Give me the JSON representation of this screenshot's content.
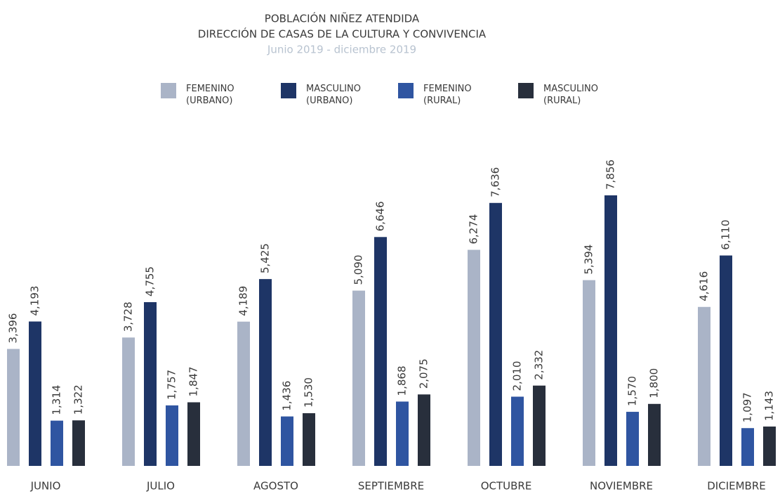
{
  "chart_data": {
    "type": "bar",
    "title": "POBLACIÓN NIÑEZ ATENDIDA",
    "subtitle": "DIRECCIÓN DE CASAS DE LA CULTURA Y CONVIVENCIA",
    "date_range": "Junio 2019 - diciembre 2019",
    "categories": [
      "JUNIO",
      "JULIO",
      "AGOSTO",
      "SEPTIEMBRE",
      "OCTUBRE",
      "NOVIEMBRE",
      "DICIEMBRE"
    ],
    "series": [
      {
        "name": "FEMENINO (URBANO)",
        "color": "#aab4c7",
        "values": [
          3396,
          3728,
          4189,
          5090,
          6274,
          5394,
          4616
        ],
        "value_labels": [
          "3,396",
          "3,728",
          "4,189",
          "5,090",
          "6,274",
          "5,394",
          "4,616"
        ]
      },
      {
        "name": "MASCULINO (URBANO)",
        "color": "#1e3566",
        "values": [
          4193,
          4755,
          5425,
          6646,
          7636,
          7856,
          6110
        ],
        "value_labels": [
          "4,193",
          "4,755",
          "5,425",
          "6,646",
          "7,636",
          "7,856",
          "6,110"
        ]
      },
      {
        "name": "FEMENINO (RURAL)",
        "color": "#2f55a1",
        "values": [
          1314,
          1757,
          1436,
          1868,
          2010,
          1570,
          1097
        ],
        "value_labels": [
          "1,314",
          "1,757",
          "1,436",
          "1,868",
          "2,010",
          "1,570",
          "1,097"
        ]
      },
      {
        "name": "MASCULINO (RURAL)",
        "color": "#282f3c",
        "values": [
          1322,
          1847,
          1530,
          2075,
          2332,
          1800,
          1143
        ],
        "value_labels": [
          "1,322",
          "1,847",
          "1,530",
          "2,075",
          "2,332",
          "1,800",
          "1,143"
        ]
      }
    ]
  }
}
